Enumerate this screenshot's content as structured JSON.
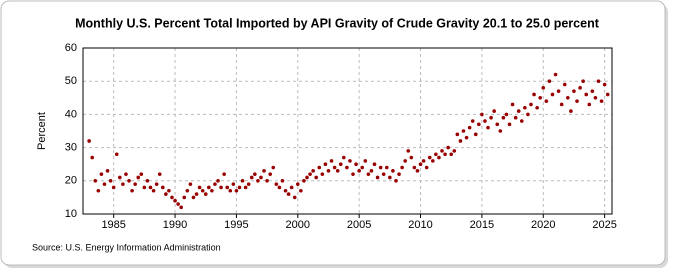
{
  "chart_data": {
    "type": "scatter",
    "title": "Monthly U.S. Percent Total Imported by API Gravity of Crude Gravity 20.1 to 25.0 percent",
    "y_label": "Percent",
    "source": "Source: U.S. Energy Information Administration",
    "color": "#990000",
    "grid": true,
    "xlim": [
      1982.5,
      2025.6
    ],
    "xticks": [
      1985,
      1990,
      1995,
      2000,
      2005,
      2010,
      2015,
      2020,
      2025
    ],
    "ylim": [
      10,
      60
    ],
    "yticks": [
      10,
      20,
      30,
      40,
      50,
      60
    ],
    "x": [
      1983,
      1983.25,
      1983.5,
      1983.75,
      1984,
      1984.25,
      1984.5,
      1984.75,
      1985,
      1985.25,
      1985.5,
      1985.75,
      1986,
      1986.25,
      1986.5,
      1986.75,
      1987,
      1987.25,
      1987.5,
      1987.75,
      1988,
      1988.25,
      1988.5,
      1988.75,
      1989,
      1989.25,
      1989.5,
      1989.75,
      1990,
      1990.25,
      1990.5,
      1990.75,
      1991,
      1991.25,
      1991.5,
      1991.75,
      1992,
      1992.25,
      1992.5,
      1992.75,
      1993,
      1993.25,
      1993.5,
      1993.75,
      1994,
      1994.25,
      1994.5,
      1994.75,
      1995,
      1995.25,
      1995.5,
      1995.75,
      1996,
      1996.25,
      1996.5,
      1996.75,
      1997,
      1997.25,
      1997.5,
      1997.75,
      1998,
      1998.25,
      1998.5,
      1998.75,
      1999,
      1999.25,
      1999.5,
      1999.75,
      2000,
      2000.25,
      2000.5,
      2000.75,
      2001,
      2001.25,
      2001.5,
      2001.75,
      2002,
      2002.25,
      2002.5,
      2002.75,
      2003,
      2003.25,
      2003.5,
      2003.75,
      2004,
      2004.25,
      2004.5,
      2004.75,
      2005,
      2005.25,
      2005.5,
      2005.75,
      2006,
      2006.25,
      2006.5,
      2006.75,
      2007,
      2007.25,
      2007.5,
      2007.75,
      2008,
      2008.25,
      2008.5,
      2008.75,
      2009,
      2009.25,
      2009.5,
      2009.75,
      2010,
      2010.25,
      2010.5,
      2010.75,
      2011,
      2011.25,
      2011.5,
      2011.75,
      2012,
      2012.25,
      2012.5,
      2012.75,
      2013,
      2013.25,
      2013.5,
      2013.75,
      2014,
      2014.25,
      2014.5,
      2014.75,
      2015,
      2015.25,
      2015.5,
      2015.75,
      2016,
      2016.25,
      2016.5,
      2016.75,
      2017,
      2017.25,
      2017.5,
      2017.75,
      2018,
      2018.25,
      2018.5,
      2018.75,
      2019,
      2019.25,
      2019.5,
      2019.75,
      2020,
      2020.25,
      2020.5,
      2020.75,
      2021,
      2021.25,
      2021.5,
      2021.75,
      2022,
      2022.25,
      2022.5,
      2022.75,
      2023,
      2023.25,
      2023.5,
      2023.75,
      2024,
      2024.25,
      2024.5,
      2024.75,
      2025,
      2025.25
    ],
    "values": [
      32,
      27,
      20,
      17,
      22,
      19,
      23,
      20,
      18,
      28,
      21,
      19,
      22,
      20,
      17,
      19,
      21,
      22,
      18,
      20,
      18,
      17,
      19,
      22,
      18,
      16,
      17,
      15,
      14,
      13,
      12,
      15,
      17,
      19,
      15,
      16,
      18,
      17,
      16,
      18,
      17,
      19,
      20,
      18,
      22,
      18,
      17,
      19,
      17,
      18,
      20,
      18,
      19,
      21,
      22,
      20,
      21,
      23,
      20,
      22,
      24,
      19,
      18,
      20,
      17,
      16,
      18,
      15,
      19,
      17,
      20,
      21,
      22,
      23,
      21,
      24,
      22,
      25,
      23,
      26,
      24,
      23,
      25,
      27,
      24,
      26,
      22,
      25,
      23,
      24,
      26,
      22,
      23,
      25,
      21,
      24,
      22,
      24,
      21,
      23,
      20,
      22,
      24,
      26,
      29,
      27,
      24,
      23,
      25,
      26,
      24,
      27,
      26,
      28,
      27,
      29,
      28,
      30,
      28,
      29,
      34,
      32,
      35,
      33,
      36,
      38,
      34,
      37,
      40,
      38,
      36,
      39,
      41,
      37,
      35,
      39,
      40,
      37,
      43,
      39,
      41,
      38,
      42,
      40,
      43,
      46,
      42,
      45,
      48,
      44,
      50,
      46,
      52,
      47,
      43,
      49,
      45,
      41,
      47,
      44,
      48,
      50,
      46,
      43,
      47,
      45,
      50,
      44,
      49,
      46
    ]
  }
}
